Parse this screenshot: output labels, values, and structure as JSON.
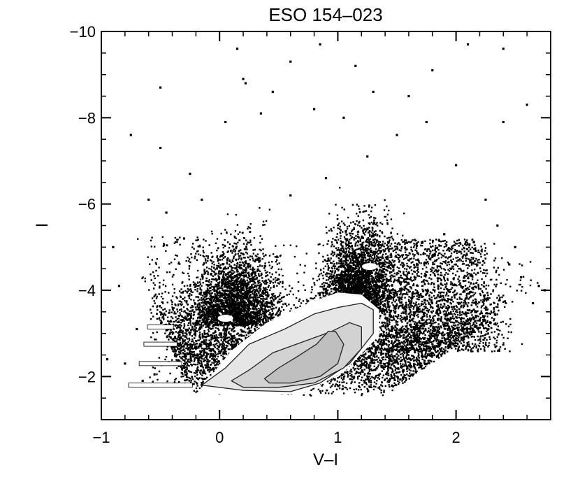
{
  "chart_data": {
    "type": "scatter",
    "title": "ESO 154–023",
    "xlabel": "V–I",
    "ylabel": "I",
    "xlim": [
      -1,
      2.8
    ],
    "ylim": [
      -1,
      -10
    ],
    "y_axis_inverted": true,
    "x_ticks": [
      -1,
      0,
      1,
      2
    ],
    "x_tick_labels": [
      "−1",
      "0",
      "1",
      "2"
    ],
    "y_ticks": [
      -2,
      -4,
      -6,
      -8,
      -10
    ],
    "y_tick_labels": [
      "−2",
      "−4",
      "−6",
      "−8",
      "−10"
    ],
    "grid": false,
    "legend": "none",
    "point_color": "#000000",
    "contour_colors": [
      "#ffffff",
      "#e6e6e6",
      "#d2d2d2",
      "#bfbfbf"
    ],
    "series": [
      {
        "kind": "density_contours",
        "levels": [
          {
            "level": 1,
            "color": "#ffffff",
            "outline": [
              [
                -0.2,
                -1.6
              ],
              [
                -0.15,
                -1.75
              ],
              [
                0.1,
                -2.6
              ],
              [
                0.4,
                -3.25
              ],
              [
                0.75,
                -3.7
              ],
              [
                1.0,
                -3.95
              ],
              [
                1.2,
                -3.9
              ],
              [
                1.35,
                -3.55
              ],
              [
                1.35,
                -2.95
              ],
              [
                1.05,
                -2.1
              ],
              [
                0.7,
                -1.6
              ],
              [
                0.3,
                -1.55
              ]
            ]
          },
          {
            "level": 2,
            "color": "#e6e6e6",
            "outline": [
              [
                -0.15,
                -1.8
              ],
              [
                0.05,
                -2.2
              ],
              [
                0.25,
                -2.75
              ],
              [
                0.55,
                -3.1
              ],
              [
                0.8,
                -3.45
              ],
              [
                1.0,
                -3.6
              ],
              [
                1.2,
                -3.7
              ],
              [
                1.3,
                -3.55
              ],
              [
                1.3,
                -3.0
              ],
              [
                1.1,
                -2.3
              ],
              [
                0.85,
                -1.85
              ],
              [
                0.6,
                -1.65
              ],
              [
                0.2,
                -1.68
              ]
            ]
          },
          {
            "level": 3,
            "color": "#d2d2d2",
            "outline": [
              [
                0.1,
                -1.9
              ],
              [
                0.25,
                -2.15
              ],
              [
                0.45,
                -2.55
              ],
              [
                0.7,
                -2.8
              ],
              [
                0.95,
                -3.05
              ],
              [
                1.1,
                -3.25
              ],
              [
                1.2,
                -3.15
              ],
              [
                1.2,
                -2.65
              ],
              [
                1.05,
                -2.2
              ],
              [
                0.8,
                -1.85
              ],
              [
                0.5,
                -1.75
              ],
              [
                0.2,
                -1.75
              ]
            ]
          },
          {
            "level": 4,
            "color": "#bfbfbf",
            "outline": [
              [
                0.38,
                -1.95
              ],
              [
                0.5,
                -2.2
              ],
              [
                0.65,
                -2.45
              ],
              [
                0.82,
                -2.75
              ],
              [
                0.92,
                -3.05
              ],
              [
                0.98,
                -3.05
              ],
              [
                1.05,
                -2.75
              ],
              [
                1.0,
                -2.3
              ],
              [
                0.85,
                -2.0
              ],
              [
                0.6,
                -1.85
              ],
              [
                0.42,
                -1.85
              ]
            ]
          }
        ]
      },
      {
        "kind": "error_bars",
        "color": "#ffffff",
        "x_center": -0.5,
        "points": [
          {
            "y": -1.8,
            "x_err": 0.27,
            "y_err": 0.18
          },
          {
            "y": -2.3,
            "x_err": 0.18,
            "y_err": 0.12
          },
          {
            "y": -2.75,
            "x_err": 0.14,
            "y_err": 0.08
          },
          {
            "y": -3.15,
            "x_err": 0.11,
            "y_err": 0.06
          }
        ]
      },
      {
        "kind": "scatter_points",
        "color": "#000000",
        "sparse_points": [
          [
            -0.75,
            -7.6
          ],
          [
            -0.5,
            -8.7
          ],
          [
            0.15,
            -9.6
          ],
          [
            0.2,
            -8.9
          ],
          [
            0.22,
            -8.8
          ],
          [
            0.6,
            -9.3
          ],
          [
            0.85,
            -9.7
          ],
          [
            1.15,
            -9.2
          ],
          [
            1.3,
            -8.6
          ],
          [
            1.6,
            -8.5
          ],
          [
            1.8,
            -9.1
          ],
          [
            2.1,
            -9.7
          ],
          [
            2.4,
            -9.6
          ],
          [
            2.6,
            -8.3
          ],
          [
            2.4,
            -7.9
          ],
          [
            1.75,
            -7.9
          ],
          [
            0.8,
            -8.2
          ],
          [
            0.35,
            -8.1
          ],
          [
            -0.5,
            -7.3
          ],
          [
            -0.9,
            -5.0
          ],
          [
            -0.85,
            -4.1
          ],
          [
            -0.95,
            -2.4
          ],
          [
            -0.6,
            -6.1
          ],
          [
            -0.45,
            -5.8
          ],
          [
            -0.3,
            -5.2
          ],
          [
            2.7,
            -4.1
          ],
          [
            2.55,
            -4.3
          ],
          [
            2.65,
            -3.7
          ],
          [
            2.75,
            -4.0
          ],
          [
            2.2,
            -3.3
          ],
          [
            -0.25,
            -6.7
          ],
          [
            0.9,
            -6.6
          ],
          [
            1.5,
            -7.6
          ],
          [
            2.0,
            -6.9
          ],
          [
            2.25,
            -6.1
          ],
          [
            2.35,
            -5.5
          ],
          [
            0.05,
            -7.9
          ],
          [
            0.45,
            -8.6
          ],
          [
            1.05,
            -8.0
          ],
          [
            1.25,
            -7.1
          ],
          [
            -0.7,
            -3.1
          ],
          [
            -0.8,
            -2.3
          ],
          [
            -0.65,
            -1.9
          ],
          [
            -0.55,
            -2.05
          ],
          [
            2.45,
            -4.6
          ],
          [
            2.5,
            -5.0
          ],
          [
            1.9,
            -5.3
          ],
          [
            0.6,
            -6.2
          ],
          [
            -0.15,
            -6.1
          ]
        ]
      },
      {
        "kind": "clump_gaps",
        "color": "#ffffff",
        "points": [
          [
            0.05,
            -3.35
          ],
          [
            1.27,
            -4.55
          ]
        ]
      }
    ]
  }
}
